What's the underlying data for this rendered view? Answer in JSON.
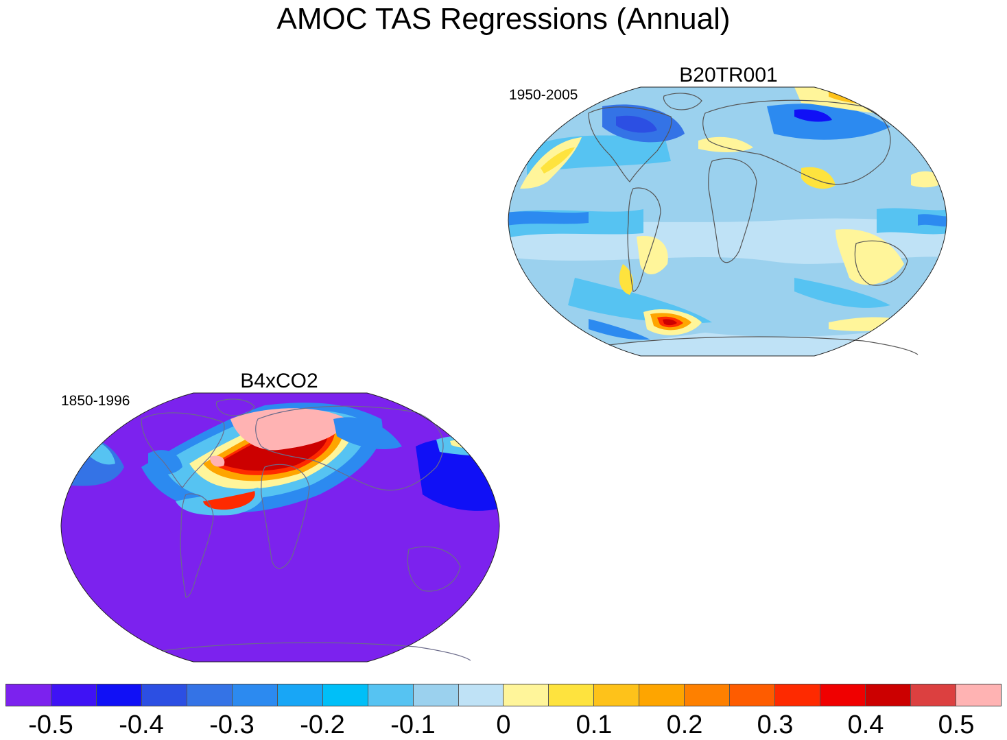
{
  "title": "AMOC TAS Regressions (Annual)",
  "panels": [
    {
      "id": "b20tr001",
      "title": "B20TR001",
      "period": "1950-2005",
      "base_color": "#9bd1ee"
    },
    {
      "id": "b4xco2",
      "title": "B4xCO2",
      "period": "1850-1996",
      "base_color": "#7c22ee"
    }
  ],
  "colorbar": {
    "colors": [
      "#7c22ee",
      "#3f12f5",
      "#1010f6",
      "#2c4fe3",
      "#3473e6",
      "#2c8af0",
      "#18a6f6",
      "#00bff8",
      "#56c3f2",
      "#9bd1ee",
      "#bfe2f6",
      "#fff59a",
      "#fee33e",
      "#fec21a",
      "#fea500",
      "#fe8000",
      "#fe5c00",
      "#fe2a00",
      "#f00000",
      "#cc0000",
      "#dc4040",
      "#ffb3b3"
    ],
    "tick_labels": [
      "-0.5",
      "-0.4",
      "-0.3",
      "-0.2",
      "-0.1",
      "0",
      "0.1",
      "0.2",
      "0.3",
      "0.4",
      "0.5"
    ]
  },
  "chart_data": {
    "type": "heatmap",
    "levels": [
      -0.5,
      -0.45,
      -0.4,
      -0.35,
      -0.3,
      -0.25,
      -0.2,
      -0.15,
      -0.1,
      -0.05,
      0,
      0.05,
      0.1,
      0.15,
      0.2,
      0.25,
      0.3,
      0.35,
      0.4,
      0.45,
      0.5
    ],
    "projection": "Robinson"
  }
}
